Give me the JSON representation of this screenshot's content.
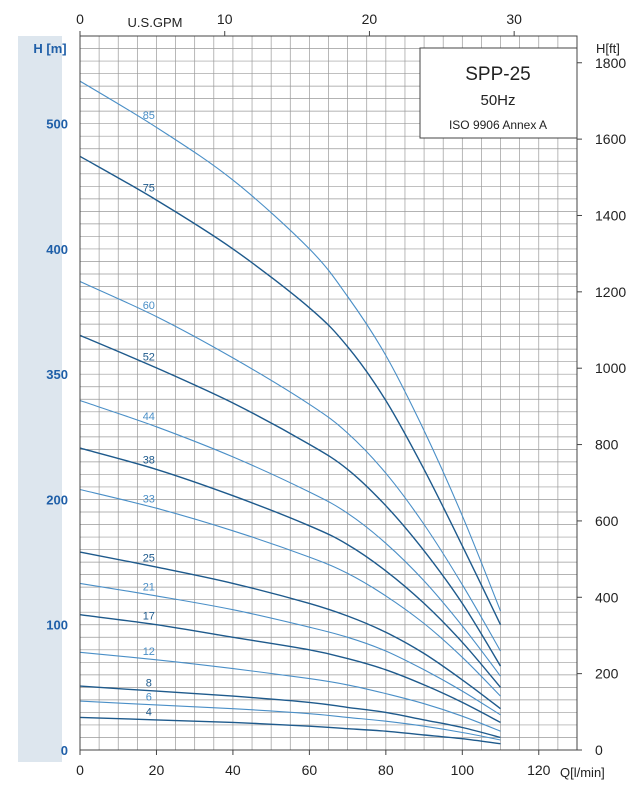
{
  "chart_data": {
    "type": "line",
    "title": "SPP-25",
    "subtitle": "50Hz",
    "standard": "ISO 9906 Annex A",
    "xlabel": "Q[l/min]",
    "ylabel_left": "H [m]",
    "ylabel_right": "H[ft]",
    "xlabel_top": "U.S.GPM",
    "xlim": [
      0,
      130
    ],
    "x_ticks": [
      0,
      20,
      40,
      60,
      80,
      100,
      120
    ],
    "top_ticks": [
      0,
      10,
      20,
      30
    ],
    "right_ticks": [
      0,
      200,
      400,
      600,
      800,
      1000,
      1200,
      1400,
      1600,
      1800
    ],
    "left_ticks": [
      "0",
      "100",
      "200",
      "350",
      "400",
      "500"
    ],
    "grid": true,
    "colors": {
      "dark": "#1e5a8c",
      "light": "#4a8fc7",
      "left_band": "#dde6ee"
    },
    "series": [
      {
        "name": "85",
        "x": [
          0,
          20,
          40,
          60,
          70,
          80,
          90,
          100,
          110
        ],
        "y": [
          534,
          497,
          455,
          400,
          362,
          315,
          255,
          187,
          111
        ]
      },
      {
        "name": "75",
        "x": [
          0,
          20,
          40,
          60,
          70,
          80,
          90,
          100,
          110
        ],
        "y": [
          474,
          439,
          400,
          353,
          322,
          279,
          224,
          163,
          100
        ]
      },
      {
        "name": "60",
        "x": [
          0,
          20,
          40,
          60,
          70,
          80,
          90,
          100,
          110
        ],
        "y": [
          374,
          346,
          313,
          276,
          253,
          221,
          180,
          132,
          79
        ]
      },
      {
        "name": "52",
        "x": [
          0,
          20,
          40,
          60,
          70,
          80,
          90,
          100,
          110
        ],
        "y": [
          331,
          305,
          277,
          244,
          224,
          195,
          159,
          117,
          67
        ]
      },
      {
        "name": "44",
        "x": [
          0,
          20,
          40,
          60,
          70,
          80,
          90,
          100,
          110
        ],
        "y": [
          279,
          258,
          234,
          206,
          189,
          165,
          135,
          99,
          59
        ]
      },
      {
        "name": "38",
        "x": [
          0,
          20,
          40,
          60,
          70,
          80,
          90,
          100,
          110
        ],
        "y": [
          241,
          224,
          203,
          179,
          164,
          143,
          117,
          86,
          50
        ]
      },
      {
        "name": "33",
        "x": [
          0,
          20,
          40,
          60,
          70,
          80,
          90,
          100,
          110
        ],
        "y": [
          208,
          193,
          175,
          154,
          141,
          123,
          101,
          74,
          43
        ]
      },
      {
        "name": "25",
        "x": [
          0,
          20,
          40,
          60,
          70,
          80,
          90,
          100,
          110
        ],
        "y": [
          158,
          146,
          133,
          117,
          107,
          94,
          77,
          56,
          33
        ]
      },
      {
        "name": "21",
        "x": [
          0,
          20,
          40,
          60,
          70,
          80,
          90,
          100,
          110
        ],
        "y": [
          133,
          123,
          112,
          98,
          90,
          79,
          64,
          47,
          28
        ]
      },
      {
        "name": "17",
        "x": [
          0,
          20,
          40,
          60,
          70,
          80,
          90,
          100,
          110
        ],
        "y": [
          108,
          100,
          90,
          80,
          73,
          64,
          52,
          38,
          22
        ]
      },
      {
        "name": "12",
        "x": [
          0,
          20,
          40,
          60,
          70,
          80,
          90,
          100,
          110
        ],
        "y": [
          78,
          72,
          65,
          57,
          52,
          45,
          37,
          27,
          15
        ]
      },
      {
        "name": "8",
        "x": [
          0,
          20,
          40,
          60,
          70,
          80,
          90,
          100,
          110
        ],
        "y": [
          51,
          47,
          43,
          38,
          34,
          30,
          24,
          18,
          10
        ]
      },
      {
        "name": "6",
        "x": [
          0,
          20,
          40,
          60,
          70,
          80,
          90,
          100,
          110
        ],
        "y": [
          39,
          36,
          33,
          29,
          26,
          23,
          19,
          14,
          8
        ]
      },
      {
        "name": "4",
        "x": [
          0,
          20,
          40,
          60,
          70,
          80,
          90,
          100,
          110
        ],
        "y": [
          26,
          24,
          22,
          19,
          17,
          15,
          12,
          9,
          5
        ]
      }
    ]
  }
}
